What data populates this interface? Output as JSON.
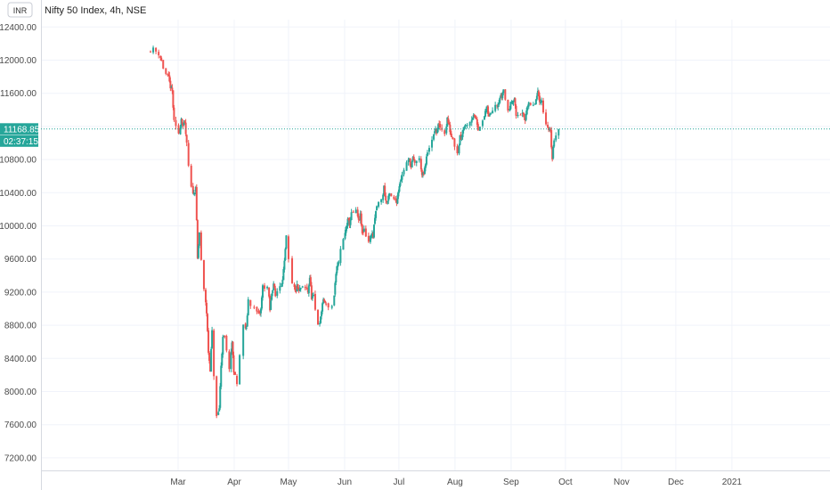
{
  "header": {
    "currency": "INR",
    "symbol_title": "Nifty 50 Index, 4h, NSE"
  },
  "price_tag": {
    "last_price": "11168.85",
    "countdown": "02:37:15"
  },
  "colors": {
    "up": "#26a69a",
    "down": "#ef5350",
    "grid": "#f0f3fa",
    "axis_text": "#4a4a4a",
    "price_line": "#26a69a"
  },
  "chart_data": {
    "type": "candlestick",
    "title": "Nifty 50 Index, 4h, NSE",
    "ylim": [
      7100,
      12600
    ],
    "yticks": [
      7200,
      7600,
      8000,
      8400,
      8800,
      9200,
      9600,
      10000,
      10400,
      10800,
      11200,
      11600,
      12000,
      12400
    ],
    "ytick_labels": [
      "7200.00",
      "7600.00",
      "8000.00",
      "8400.00",
      "8800.00",
      "9200.00",
      "9600.00",
      "10000.00",
      "10400.00",
      "10800.00",
      "11200.00",
      "11600.00",
      "12000.00",
      "12400.00"
    ],
    "x_axis": "time (2020, monthly labels)",
    "xtick_labels": [
      "Mar",
      "Apr",
      "May",
      "Jun",
      "Jul",
      "Aug",
      "Sep",
      "Oct",
      "Nov",
      "Dec",
      "2021"
    ],
    "xtick_dates": [
      "2020-03-01",
      "2020-04-01",
      "2020-05-01",
      "2020-06-01",
      "2020-07-01",
      "2020-08-01",
      "2020-09-01",
      "2020-10-01",
      "2020-11-01",
      "2020-12-01",
      "2021-01-01"
    ],
    "last_price": 11168.85,
    "anchors": [
      [
        "2020-02-14",
        12120
      ],
      [
        "2020-02-17",
        12130
      ],
      [
        "2020-02-20",
        12080
      ],
      [
        "2020-02-21",
        11990
      ],
      [
        "2020-02-24",
        11830
      ],
      [
        "2020-02-25",
        11780
      ],
      [
        "2020-02-26",
        11680
      ],
      [
        "2020-02-27",
        11620
      ],
      [
        "2020-02-28",
        11250
      ],
      [
        "2020-03-02",
        11120
      ],
      [
        "2020-03-03",
        11300
      ],
      [
        "2020-03-04",
        11210
      ],
      [
        "2020-03-05",
        11230
      ],
      [
        "2020-03-06",
        10980
      ],
      [
        "2020-03-09",
        10450
      ],
      [
        "2020-03-10",
        10380
      ],
      [
        "2020-03-11",
        10480
      ],
      [
        "2020-03-12",
        9600
      ],
      [
        "2020-03-13",
        9920
      ],
      [
        "2020-03-16",
        9220
      ],
      [
        "2020-03-17",
        8950
      ],
      [
        "2020-03-18",
        8480
      ],
      [
        "2020-03-19",
        8270
      ],
      [
        "2020-03-20",
        8720
      ],
      [
        "2020-03-23",
        7690
      ],
      [
        "2020-03-24",
        7800
      ],
      [
        "2020-03-25",
        8320
      ],
      [
        "2020-03-26",
        8640
      ],
      [
        "2020-03-27",
        8660
      ],
      [
        "2020-03-30",
        8290
      ],
      [
        "2020-03-31",
        8600
      ],
      [
        "2020-04-01",
        8260
      ],
      [
        "2020-04-03",
        8090
      ],
      [
        "2020-04-07",
        8790
      ],
      [
        "2020-04-08",
        8750
      ],
      [
        "2020-04-09",
        9110
      ],
      [
        "2020-04-13",
        9000
      ],
      [
        "2020-04-15",
        8920
      ],
      [
        "2020-04-16",
        8990
      ],
      [
        "2020-04-17",
        9270
      ],
      [
        "2020-04-20",
        9260
      ],
      [
        "2020-04-21",
        8980
      ],
      [
        "2020-04-22",
        9190
      ],
      [
        "2020-04-23",
        9310
      ],
      [
        "2020-04-24",
        9150
      ],
      [
        "2020-04-27",
        9280
      ],
      [
        "2020-04-28",
        9380
      ],
      [
        "2020-04-29",
        9550
      ],
      [
        "2020-04-30",
        9860
      ],
      [
        "2020-05-04",
        9290
      ],
      [
        "2020-05-05",
        9200
      ],
      [
        "2020-05-06",
        9270
      ],
      [
        "2020-05-07",
        9200
      ],
      [
        "2020-05-08",
        9250
      ],
      [
        "2020-05-11",
        9240
      ],
      [
        "2020-05-12",
        9200
      ],
      [
        "2020-05-13",
        9380
      ],
      [
        "2020-05-14",
        9140
      ],
      [
        "2020-05-15",
        9140
      ],
      [
        "2020-05-18",
        8820
      ],
      [
        "2020-05-19",
        8880
      ],
      [
        "2020-05-20",
        9070
      ],
      [
        "2020-05-21",
        9100
      ],
      [
        "2020-05-22",
        9040
      ],
      [
        "2020-05-26",
        9030
      ],
      [
        "2020-05-27",
        9310
      ],
      [
        "2020-05-28",
        9490
      ],
      [
        "2020-05-29",
        9580
      ],
      [
        "2020-06-01",
        9830
      ],
      [
        "2020-06-02",
        9980
      ],
      [
        "2020-06-03",
        10060
      ],
      [
        "2020-06-04",
        10030
      ],
      [
        "2020-06-05",
        10140
      ],
      [
        "2020-06-08",
        10170
      ],
      [
        "2020-06-09",
        10050
      ],
      [
        "2020-06-10",
        10120
      ],
      [
        "2020-06-11",
        9900
      ],
      [
        "2020-06-12",
        9970
      ],
      [
        "2020-06-15",
        9810
      ],
      [
        "2020-06-16",
        9910
      ],
      [
        "2020-06-17",
        9880
      ],
      [
        "2020-06-18",
        10090
      ],
      [
        "2020-06-19",
        10240
      ],
      [
        "2020-06-22",
        10310
      ],
      [
        "2020-06-23",
        10470
      ],
      [
        "2020-06-24",
        10300
      ],
      [
        "2020-06-25",
        10290
      ],
      [
        "2020-06-26",
        10380
      ],
      [
        "2020-06-29",
        10310
      ],
      [
        "2020-06-30",
        10300
      ],
      [
        "2020-07-01",
        10430
      ],
      [
        "2020-07-02",
        10550
      ],
      [
        "2020-07-03",
        10610
      ],
      [
        "2020-07-06",
        10760
      ],
      [
        "2020-07-07",
        10800
      ],
      [
        "2020-07-08",
        10710
      ],
      [
        "2020-07-09",
        10810
      ],
      [
        "2020-07-10",
        10770
      ],
      [
        "2020-07-13",
        10800
      ],
      [
        "2020-07-14",
        10610
      ],
      [
        "2020-07-15",
        10620
      ],
      [
        "2020-07-16",
        10740
      ],
      [
        "2020-07-17",
        10900
      ],
      [
        "2020-07-20",
        11020
      ],
      [
        "2020-07-21",
        11160
      ],
      [
        "2020-07-22",
        11130
      ],
      [
        "2020-07-23",
        11210
      ],
      [
        "2020-07-24",
        11190
      ],
      [
        "2020-07-27",
        11130
      ],
      [
        "2020-07-28",
        11300
      ],
      [
        "2020-07-29",
        11200
      ],
      [
        "2020-07-30",
        11100
      ],
      [
        "2020-07-31",
        11070
      ],
      [
        "2020-08-03",
        10890
      ],
      [
        "2020-08-04",
        11090
      ],
      [
        "2020-08-05",
        11100
      ],
      [
        "2020-08-06",
        11200
      ],
      [
        "2020-08-07",
        11210
      ],
      [
        "2020-08-10",
        11270
      ],
      [
        "2020-08-11",
        11320
      ],
      [
        "2020-08-12",
        11310
      ],
      [
        "2020-08-13",
        11300
      ],
      [
        "2020-08-14",
        11180
      ],
      [
        "2020-08-17",
        11250
      ],
      [
        "2020-08-18",
        11390
      ],
      [
        "2020-08-19",
        11410
      ],
      [
        "2020-08-20",
        11310
      ],
      [
        "2020-08-21",
        11370
      ],
      [
        "2020-08-24",
        11470
      ],
      [
        "2020-08-25",
        11470
      ],
      [
        "2020-08-26",
        11550
      ],
      [
        "2020-08-27",
        11560
      ],
      [
        "2020-08-28",
        11650
      ],
      [
        "2020-08-31",
        11390
      ],
      [
        "2020-09-01",
        11470
      ],
      [
        "2020-09-02",
        11530
      ],
      [
        "2020-09-03",
        11530
      ],
      [
        "2020-09-04",
        11330
      ],
      [
        "2020-09-07",
        11360
      ],
      [
        "2020-09-08",
        11320
      ],
      [
        "2020-09-09",
        11280
      ],
      [
        "2020-09-10",
        11450
      ],
      [
        "2020-09-11",
        11460
      ],
      [
        "2020-09-14",
        11440
      ],
      [
        "2020-09-15",
        11520
      ],
      [
        "2020-09-16",
        11600
      ],
      [
        "2020-09-17",
        11520
      ],
      [
        "2020-09-18",
        11500
      ],
      [
        "2020-09-21",
        11250
      ],
      [
        "2020-09-22",
        11150
      ],
      [
        "2020-09-23",
        11130
      ],
      [
        "2020-09-24",
        10810
      ],
      [
        "2020-09-25",
        11050
      ],
      [
        "2020-09-28",
        11168.85
      ]
    ]
  }
}
